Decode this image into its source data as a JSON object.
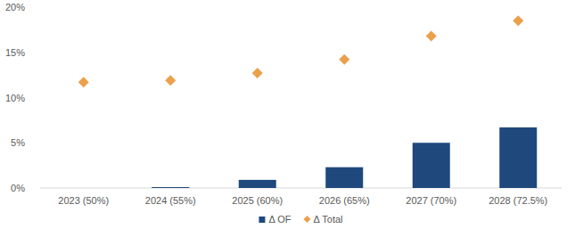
{
  "chart_data": {
    "type": "bar",
    "categories": [
      "2023 (50%)",
      "2024 (55%)",
      "2025 (60%)",
      "2026 (65%)",
      "2027 (70%)",
      "2028 (72.5%)"
    ],
    "series": [
      {
        "name": "Δ OF",
        "type": "bar",
        "color": "#1f497d",
        "values": [
          0,
          0.1,
          0.9,
          2.3,
          5.0,
          6.7
        ]
      },
      {
        "name": "Δ Total",
        "type": "scatter",
        "marker": "diamond",
        "color": "#eba04b",
        "values": [
          11.7,
          11.9,
          12.7,
          14.2,
          16.8,
          18.5
        ]
      }
    ],
    "ylim": [
      0,
      20
    ],
    "yticks": [
      {
        "value": 0,
        "label": "0%"
      },
      {
        "value": 5,
        "label": "5%"
      },
      {
        "value": 10,
        "label": "10%"
      },
      {
        "value": 15,
        "label": "15%"
      },
      {
        "value": 20,
        "label": "20%"
      }
    ],
    "grid": false,
    "legend": "bottom"
  }
}
